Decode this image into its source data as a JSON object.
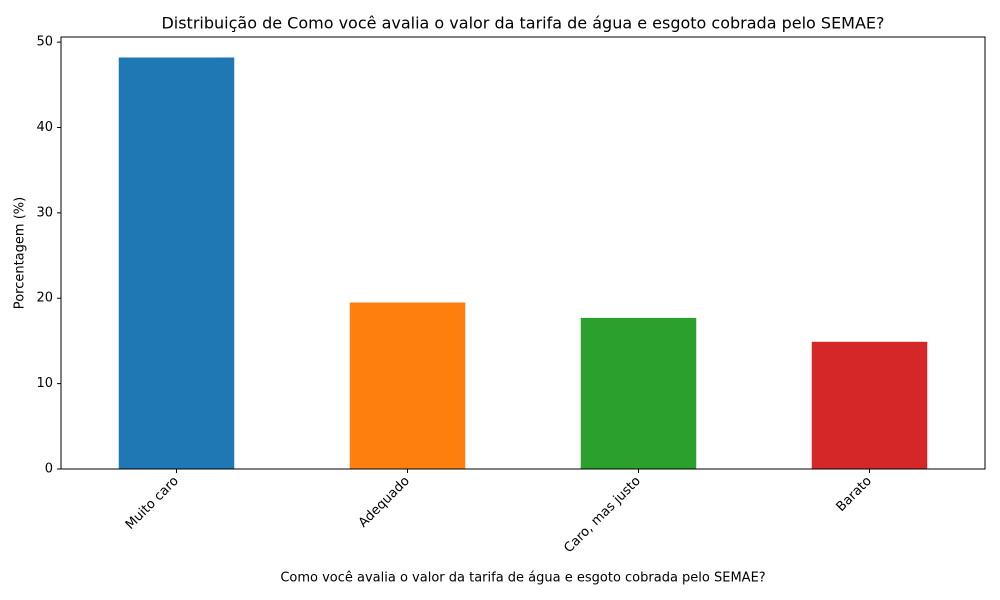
{
  "chart_data": {
    "type": "bar",
    "title": "Distribuição de Como você avalia o valor da tarifa de água e esgoto cobrada pelo SEMAE?",
    "x_label": "Como você avalia o valor da tarifa de água e esgoto cobrada pelo SEMAE?",
    "y_label": "Porcentagem (%)",
    "categories": [
      "Muito caro",
      "Adequado",
      "Caro, mas justo",
      "Barato"
    ],
    "values": [
      48.2,
      19.5,
      17.7,
      14.9
    ],
    "colors": [
      "#1f77b4",
      "#ff7f0e",
      "#2ca02c",
      "#d62728"
    ],
    "ylim": [
      0,
      50.6
    ],
    "yticks": [
      0,
      10,
      20,
      30,
      40,
      50
    ],
    "grid": false
  }
}
